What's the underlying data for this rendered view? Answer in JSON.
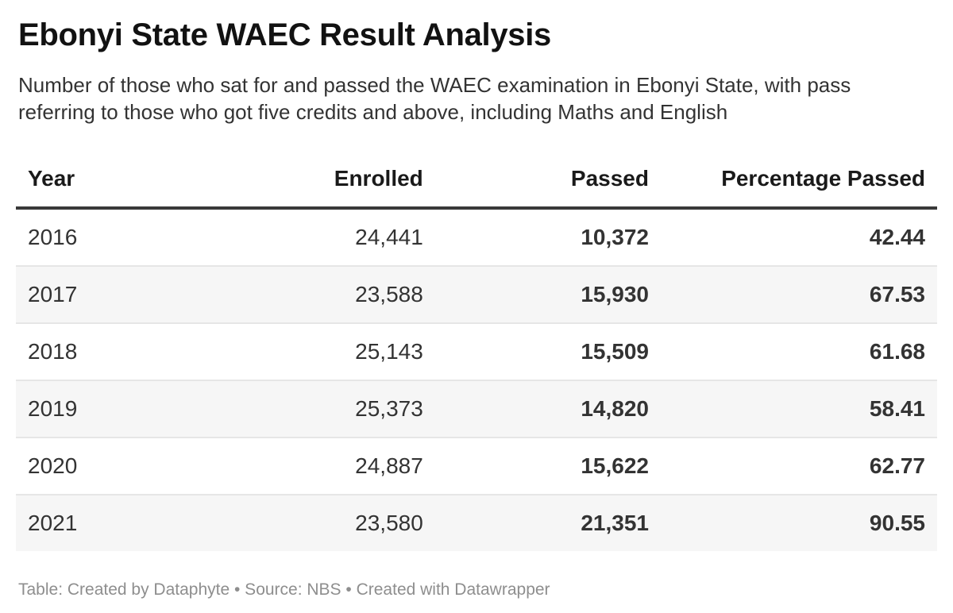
{
  "header": {
    "title": "Ebonyi State WAEC Result Analysis",
    "subtitle": "Number of those who sat for and passed the WAEC examination in Ebonyi State, with pass referring to those who got five credits and above, including Maths and English"
  },
  "table": {
    "columns": [
      {
        "key": "year",
        "label": "Year",
        "align": "left",
        "bold_values": false
      },
      {
        "key": "enrolled",
        "label": "Enrolled",
        "align": "right",
        "bold_values": false
      },
      {
        "key": "passed",
        "label": "Passed",
        "align": "right",
        "bold_values": true
      },
      {
        "key": "percentage-passed",
        "label": "Percentage Passed",
        "align": "right",
        "bold_values": true
      }
    ],
    "rows": [
      [
        "2016",
        "24,441",
        "10,372",
        "42.44"
      ],
      [
        "2017",
        "23,588",
        "15,930",
        "67.53"
      ],
      [
        "2018",
        "25,143",
        "15,509",
        "61.68"
      ],
      [
        "2019",
        "25,373",
        "14,820",
        "58.41"
      ],
      [
        "2020",
        "24,887",
        "15,622",
        "62.77"
      ],
      [
        "2021",
        "23,580",
        "21,351",
        "90.55"
      ]
    ]
  },
  "footer": {
    "credit": "Table: Created by Dataphyte • Source: NBS • Created with Datawrapper"
  },
  "colors": {
    "title_text": "#121212",
    "body_text": "#333333",
    "bold_text": "#1a1a1a",
    "zebra_stripe": "#f6f6f6",
    "header_rule": "#393939",
    "row_divider": "#e6e6e6",
    "footer_text": "#8e8e8e"
  },
  "chart_data": {
    "type": "table",
    "title": "Ebonyi State WAEC Result Analysis",
    "subtitle": "Number of those who sat for and passed the WAEC examination in Ebonyi State, with pass referring to those who got five credits and above, including Maths and English",
    "columns": [
      "Year",
      "Enrolled",
      "Passed",
      "Percentage Passed"
    ],
    "rows": [
      [
        2016,
        24441,
        10372,
        42.44
      ],
      [
        2017,
        23588,
        15930,
        67.53
      ],
      [
        2018,
        25143,
        15509,
        61.68
      ],
      [
        2019,
        25373,
        14820,
        58.41
      ],
      [
        2020,
        24887,
        15622,
        62.77
      ],
      [
        2021,
        23580,
        21351,
        90.55
      ]
    ],
    "zebra_striped_rows": [
      2017,
      2019,
      2021
    ],
    "credit": "Table: Created by Dataphyte",
    "source": "NBS",
    "tool": "Created with Datawrapper"
  }
}
